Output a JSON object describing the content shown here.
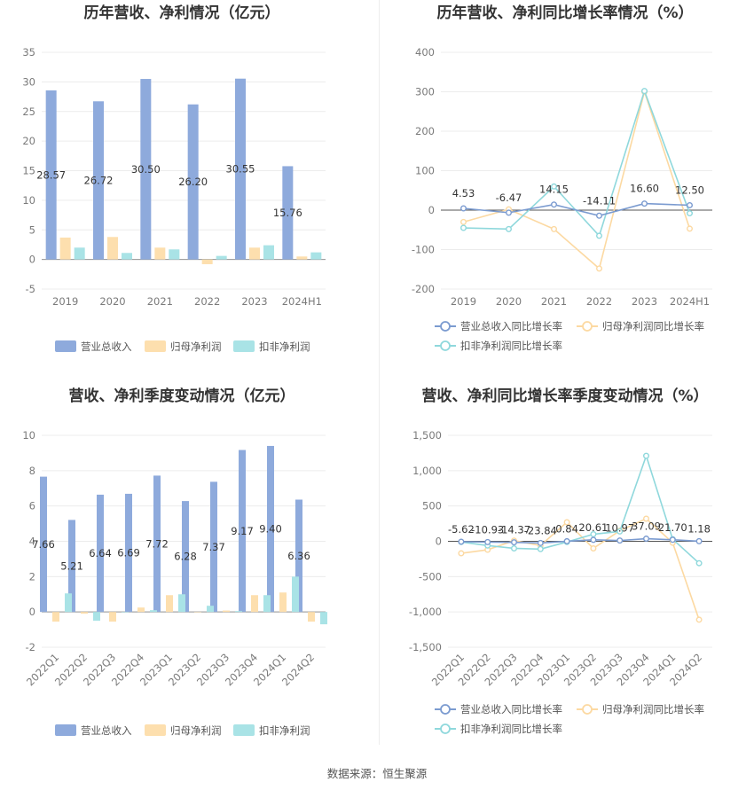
{
  "source_label": "数据来源：恒生聚源",
  "chart_data": [
    {
      "type": "bar",
      "title": "历年营收、净利情况（亿元）",
      "categories": [
        "2019",
        "2020",
        "2021",
        "2022",
        "2023",
        "2024H1"
      ],
      "ylim": [
        -5,
        35
      ],
      "yticks": [
        -5,
        0,
        5,
        10,
        15,
        20,
        25,
        30,
        35
      ],
      "grid": true,
      "legend_position": "bottom",
      "series": [
        {
          "name": "营业总收入",
          "values": [
            28.57,
            26.72,
            30.5,
            26.2,
            30.55,
            15.76
          ],
          "color": "#8eaadc",
          "labels": [
            "28.57",
            "26.72",
            "30.50",
            "26.20",
            "30.55",
            "15.76"
          ]
        },
        {
          "name": "归母净利润",
          "values": [
            3.7,
            3.8,
            2.0,
            -0.8,
            2.0,
            0.5
          ],
          "color": "#fddfae"
        },
        {
          "name": "扣非净利润",
          "values": [
            2.0,
            1.1,
            1.7,
            0.6,
            2.4,
            1.2
          ],
          "color": "#a9e3e6"
        }
      ]
    },
    {
      "type": "line",
      "title": "历年营收、净利同比增长率情况（%）",
      "categories": [
        "2019",
        "2020",
        "2021",
        "2022",
        "2023",
        "2024H1"
      ],
      "ylim": [
        -200,
        400
      ],
      "yticks": [
        -200,
        -100,
        0,
        100,
        200,
        300,
        400
      ],
      "grid": true,
      "legend_position": "bottom",
      "series": [
        {
          "name": "营业总收入同比增长率",
          "values": [
            4.53,
            -6.47,
            14.15,
            -14.11,
            16.6,
            12.5
          ],
          "color": "#7b9bd0",
          "labels": [
            "4.53",
            "-6.47",
            "14.15",
            "-14.11",
            "16.60",
            "12.50"
          ]
        },
        {
          "name": "归母净利润同比增长率",
          "values": [
            -30,
            2,
            -48,
            -148,
            300,
            -47
          ],
          "color": "#fcd9a2"
        },
        {
          "name": "扣非净利润同比增长率",
          "values": [
            -45,
            -48,
            60,
            -65,
            302,
            -8
          ],
          "color": "#8fd8dc"
        }
      ]
    },
    {
      "type": "bar",
      "title": "营收、净利季度变动情况（亿元）",
      "categories": [
        "2022Q1",
        "2022Q2",
        "2022Q3",
        "2022Q4",
        "2023Q1",
        "2023Q2",
        "2023Q3",
        "2023Q4",
        "2024Q1",
        "2024Q2"
      ],
      "ylim": [
        -2,
        10
      ],
      "yticks": [
        -2,
        0,
        2,
        4,
        6,
        8,
        10
      ],
      "grid": true,
      "legend_position": "bottom",
      "series": [
        {
          "name": "营业总收入",
          "values": [
            7.66,
            5.21,
            6.64,
            6.69,
            7.72,
            6.28,
            7.37,
            9.17,
            9.4,
            6.36
          ],
          "color": "#8eaadc",
          "labels": [
            "7.66",
            "5.21",
            "6.64",
            "6.69",
            "7.72",
            "6.28",
            "7.37",
            "9.17",
            "9.40",
            "6.36"
          ]
        },
        {
          "name": "归母净利润",
          "values": [
            -0.55,
            -0.1,
            -0.55,
            0.25,
            0.95,
            0.0,
            0.08,
            0.95,
            1.1,
            -0.55
          ],
          "color": "#fddfae"
        },
        {
          "name": "扣非净利润",
          "values": [
            1.05,
            -0.5,
            0.0,
            0.1,
            1.0,
            0.35,
            0.05,
            0.95,
            2.0,
            -0.7
          ],
          "color": "#a9e3e6"
        }
      ]
    },
    {
      "type": "line",
      "title": "营收、净利同比增长率季度变动情况（%）",
      "categories": [
        "2022Q1",
        "2022Q2",
        "2022Q3",
        "2022Q4",
        "2023Q1",
        "2023Q2",
        "2023Q3",
        "2023Q4",
        "2024Q1",
        "2024Q2"
      ],
      "ylim": [
        -1500,
        1500
      ],
      "yticks": [
        -1500,
        -1000,
        -500,
        0,
        500,
        1000,
        1500
      ],
      "yticklabels": [
        "-1,500",
        "-1,000",
        "-500",
        "0",
        "500",
        "1,000",
        "1,500"
      ],
      "grid": true,
      "legend_position": "bottom",
      "series": [
        {
          "name": "营业总收入同比增长率",
          "values": [
            -5.62,
            -10.93,
            -14.37,
            -23.84,
            0.84,
            20.61,
            10.97,
            37.09,
            21.7,
            1.18
          ],
          "color": "#7b9bd0",
          "labels": [
            "-5.62",
            "-10.93",
            "-14.37",
            "-23.84",
            "0.84",
            "20.61",
            "10.97",
            "37.09",
            "21.70",
            "1.18"
          ]
        },
        {
          "name": "归母净利润同比增长率",
          "values": [
            -170,
            -120,
            10,
            -60,
            270,
            -100,
            150,
            320,
            -20,
            -1110
          ],
          "color": "#fcd9a2"
        },
        {
          "name": "扣非净利润同比增长率",
          "values": [
            -10,
            -60,
            -100,
            -110,
            -10,
            100,
            140,
            1210,
            30,
            -310
          ],
          "color": "#8fd8dc"
        }
      ]
    }
  ]
}
